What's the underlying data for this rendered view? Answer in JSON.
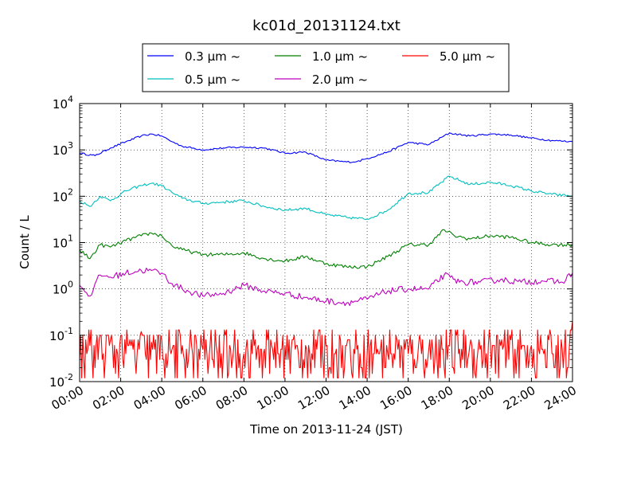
{
  "chart_data": {
    "type": "line",
    "title": "kc01d_20131124.txt",
    "xlabel": "Time on 2013-11-24 (JST)",
    "ylabel": "Count / L",
    "yscale": "log",
    "ylim": [
      0.01,
      10000
    ],
    "xlim": [
      "00:00",
      "24:00"
    ],
    "grid": true,
    "legend_position": "top",
    "x_tick_labels": [
      "00:00",
      "02:00",
      "04:00",
      "06:00",
      "08:00",
      "10:00",
      "12:00",
      "14:00",
      "16:00",
      "18:00",
      "20:00",
      "22:00",
      "24:00"
    ],
    "y_tick_labels": [
      {
        "value": 0.01,
        "base": "10",
        "exp": "-2"
      },
      {
        "value": 0.1,
        "base": "10",
        "exp": "-1"
      },
      {
        "value": 1,
        "base": "10",
        "exp": "0"
      },
      {
        "value": 10,
        "base": "10",
        "exp": "1"
      },
      {
        "value": 100,
        "base": "10",
        "exp": "2"
      },
      {
        "value": 1000,
        "base": "10",
        "exp": "3"
      },
      {
        "value": 10000,
        "base": "10",
        "exp": "4"
      }
    ],
    "series": [
      {
        "name": "0.3 μm ~",
        "color": "#0000ff",
        "x": [
          "00:00",
          "00:45",
          "01:30",
          "02:15",
          "03:00",
          "03:30",
          "04:00",
          "04:30",
          "05:00",
          "06:00",
          "07:00",
          "08:00",
          "09:00",
          "10:00",
          "11:00",
          "12:00",
          "13:00",
          "13:30",
          "14:00",
          "15:00",
          "16:00",
          "17:00",
          "18:00",
          "19:00",
          "20:00",
          "21:00",
          "22:00",
          "23:00",
          "24:00"
        ],
        "y": [
          850,
          750,
          1100,
          1500,
          2000,
          2200,
          2000,
          1500,
          1200,
          1000,
          1100,
          1150,
          1100,
          850,
          900,
          600,
          550,
          560,
          650,
          900,
          1450,
          1300,
          2300,
          2000,
          2200,
          2100,
          1800,
          1600,
          1500
        ]
      },
      {
        "name": "0.5 μm ~",
        "color": "#00bfbf",
        "x": [
          "00:00",
          "00:30",
          "01:00",
          "01:30",
          "02:15",
          "03:00",
          "03:30",
          "04:00",
          "04:30",
          "05:00",
          "06:00",
          "07:00",
          "08:00",
          "09:00",
          "10:00",
          "11:00",
          "12:00",
          "13:00",
          "14:00",
          "15:00",
          "16:00",
          "17:00",
          "18:00",
          "19:00",
          "20:00",
          "21:00",
          "22:00",
          "23:00",
          "24:00"
        ],
        "y": [
          80,
          60,
          100,
          80,
          130,
          170,
          190,
          170,
          120,
          90,
          70,
          75,
          80,
          60,
          50,
          55,
          40,
          35,
          32,
          50,
          115,
          120,
          270,
          180,
          200,
          170,
          130,
          110,
          100
        ]
      },
      {
        "name": "1.0 μm ~",
        "color": "#008000",
        "x": [
          "00:00",
          "00:30",
          "01:00",
          "01:30",
          "02:15",
          "03:00",
          "03:30",
          "04:00",
          "04:30",
          "05:00",
          "06:00",
          "07:00",
          "08:00",
          "09:00",
          "10:00",
          "11:00",
          "12:00",
          "13:00",
          "14:00",
          "15:00",
          "16:00",
          "17:00",
          "17:45",
          "18:15",
          "19:00",
          "20:00",
          "21:00",
          "22:00",
          "23:00",
          "24:00"
        ],
        "y": [
          7,
          4.5,
          9,
          8,
          11,
          14,
          16,
          14,
          8.5,
          7,
          5.5,
          5.5,
          6,
          4.5,
          4,
          5,
          3.5,
          3,
          3,
          5,
          9,
          9,
          19,
          14,
          12,
          14,
          13,
          10,
          9,
          9
        ]
      },
      {
        "name": "2.0 μm ~",
        "color": "#bf00bf",
        "x": [
          "00:00",
          "00:30",
          "01:00",
          "01:30",
          "02:15",
          "03:00",
          "03:30",
          "04:00",
          "04:30",
          "05:00",
          "06:00",
          "07:00",
          "08:00",
          "09:00",
          "10:00",
          "11:00",
          "12:00",
          "13:00",
          "14:00",
          "15:00",
          "16:00",
          "17:00",
          "17:45",
          "18:30",
          "19:30",
          "20:30",
          "21:30",
          "22:30",
          "23:30",
          "24:00"
        ],
        "y": [
          1.2,
          0.7,
          2,
          1.8,
          2.2,
          2.5,
          2.5,
          2.2,
          1.3,
          1,
          0.7,
          0.8,
          1.2,
          0.9,
          0.8,
          0.65,
          0.55,
          0.5,
          0.6,
          0.9,
          1.0,
          1.0,
          2.0,
          1.4,
          1.4,
          1.6,
          1.4,
          1.5,
          1.4,
          2.2
        ]
      },
      {
        "name": "5.0 μm ~",
        "color": "#ff0000",
        "x": [
          "00:00",
          "00:15",
          "00:30",
          "00:45",
          "01:00",
          "01:15",
          "01:30",
          "01:45",
          "02:00",
          "02:15",
          "02:30",
          "02:45",
          "03:00",
          "03:15",
          "03:30",
          "03:45",
          "04:00",
          "04:15",
          "04:30",
          "04:45",
          "05:00",
          "05:15",
          "05:30",
          "05:45",
          "06:00",
          "06:15",
          "06:30",
          "06:45",
          "07:00",
          "07:15",
          "07:30",
          "07:45",
          "08:00",
          "08:15",
          "08:30",
          "08:45",
          "09:00",
          "09:15",
          "09:30",
          "09:45",
          "10:00",
          "10:15",
          "10:30",
          "10:45",
          "11:00",
          "11:15",
          "11:30",
          "11:45",
          "12:00",
          "12:15",
          "12:30",
          "12:45",
          "13:00",
          "13:15",
          "13:30",
          "13:45",
          "14:00",
          "14:15",
          "14:30",
          "14:45",
          "15:00",
          "15:15",
          "15:30",
          "15:45",
          "16:00",
          "16:15",
          "16:30",
          "16:45",
          "17:00",
          "17:15",
          "17:30",
          "17:45",
          "18:00",
          "18:15",
          "18:30",
          "18:45",
          "19:00",
          "19:15",
          "19:30",
          "19:45",
          "20:00",
          "20:15",
          "20:30",
          "20:45",
          "21:00",
          "21:15",
          "21:30",
          "21:45",
          "22:00",
          "22:15",
          "22:30",
          "22:45",
          "23:00",
          "23:15",
          "23:30",
          "23:45",
          "24:00"
        ],
        "y": [
          0.03,
          0.012,
          0.06,
          0.02,
          0.1,
          0.03,
          0.08,
          0.015,
          0.1,
          0.04,
          0.06,
          0.015,
          0.12,
          0.03,
          0.07,
          0.015,
          0.08,
          0.02,
          0.05,
          0.012,
          0.06,
          0.02,
          0.04,
          0.012,
          0.05,
          0.015,
          0.03,
          0.012,
          0.04,
          0.015,
          0.05,
          0.02,
          0.04,
          0.012,
          0.06,
          0.02,
          0.05,
          0.015,
          0.07,
          0.02,
          0.06,
          0.015,
          0.05,
          0.02,
          0.06,
          0.015,
          0.08,
          0.02,
          0.06,
          0.015,
          0.05,
          0.02,
          0.06,
          0.015,
          0.05,
          0.02,
          0.04,
          0.015,
          0.05,
          0.012,
          0.04,
          0.02,
          0.05,
          0.012,
          0.04,
          0.015,
          0.06,
          0.02,
          0.05,
          0.015,
          0.08,
          0.02,
          0.06,
          0.015,
          0.05,
          0.02,
          0.06,
          0.015,
          0.05,
          0.02,
          0.07,
          0.015,
          0.06,
          0.02,
          0.08,
          0.015,
          0.05,
          0.02,
          0.06,
          0.012,
          0.05,
          0.02,
          0.04,
          0.012,
          0.05,
          0.02,
          0.2
        ]
      }
    ]
  }
}
